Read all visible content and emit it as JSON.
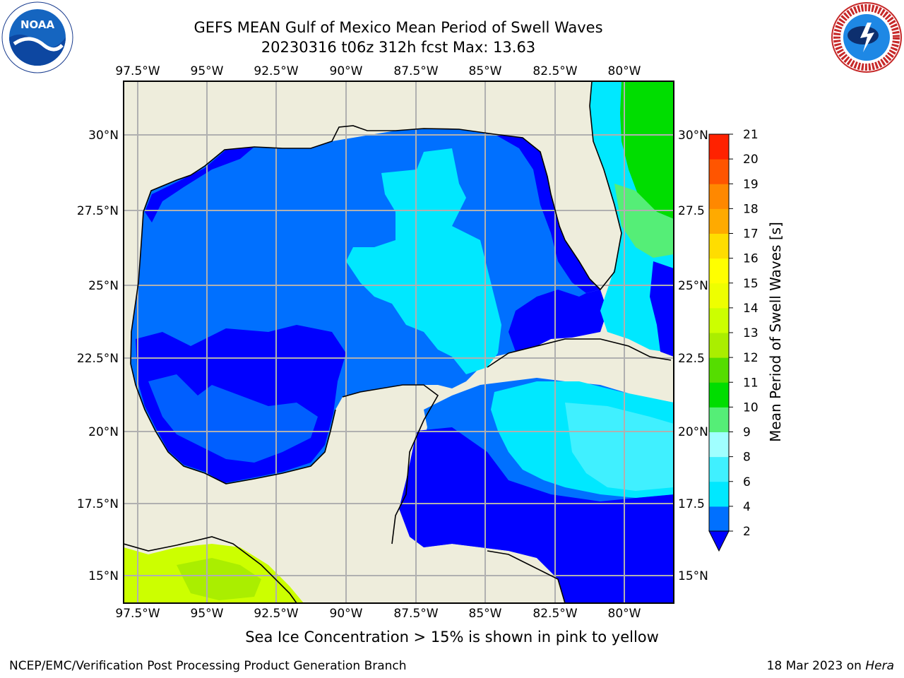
{
  "title": {
    "line1": "GEFS MEAN Gulf of Mexico Mean Period of Swell Waves",
    "line2": "20230316 t06z 312h fcst   Max: 13.63"
  },
  "logos": {
    "left": {
      "icon": "noaa-logo",
      "text": "NOAA"
    },
    "right": {
      "icon": "nws-logo",
      "text": "NATIONAL WEATHER SERVICE"
    }
  },
  "map": {
    "lon_ticks": [
      "97.5°W",
      "95°W",
      "92.5°W",
      "90°W",
      "87.5°W",
      "85°W",
      "82.5°W",
      "80°W"
    ],
    "lat_ticks_left": [
      "30°N",
      "27.5°N",
      "25°N",
      "22.5°N",
      "20°N",
      "17.5°N",
      "15°N"
    ],
    "lat_ticks_right": [
      "30°N",
      "27.5",
      "25°N",
      "22.5",
      "20°N",
      "17.5",
      "15°N"
    ],
    "land_color": "#eeeddc",
    "grid_color": "#b0b0b0"
  },
  "colorbar": {
    "label": "Mean Period of Swell Waves [s]",
    "ticks": [
      "2",
      "4",
      "6",
      "8",
      "9",
      "10",
      "11",
      "12",
      "13",
      "14",
      "15",
      "16",
      "17",
      "18",
      "19",
      "20",
      "21"
    ],
    "colors": [
      "#0070ff",
      "#00e8ff",
      "#40f0ff",
      "#a0ffff",
      "#55ee77",
      "#00dd00",
      "#55dd00",
      "#aaee00",
      "#ccff00",
      "#eeff00",
      "#ffff00",
      "#ffdd00",
      "#ffaa00",
      "#ff8800",
      "#ff5500",
      "#ff2200"
    ],
    "under_color": "#0000ff"
  },
  "note": "Sea Ice Concentration > 15% is shown in pink to yellow",
  "footer": {
    "left": "NCEP/EMC/Verification Post Processing Product Generation Branch",
    "right_date": "18 Mar 2023 on ",
    "right_host": "Hera"
  }
}
